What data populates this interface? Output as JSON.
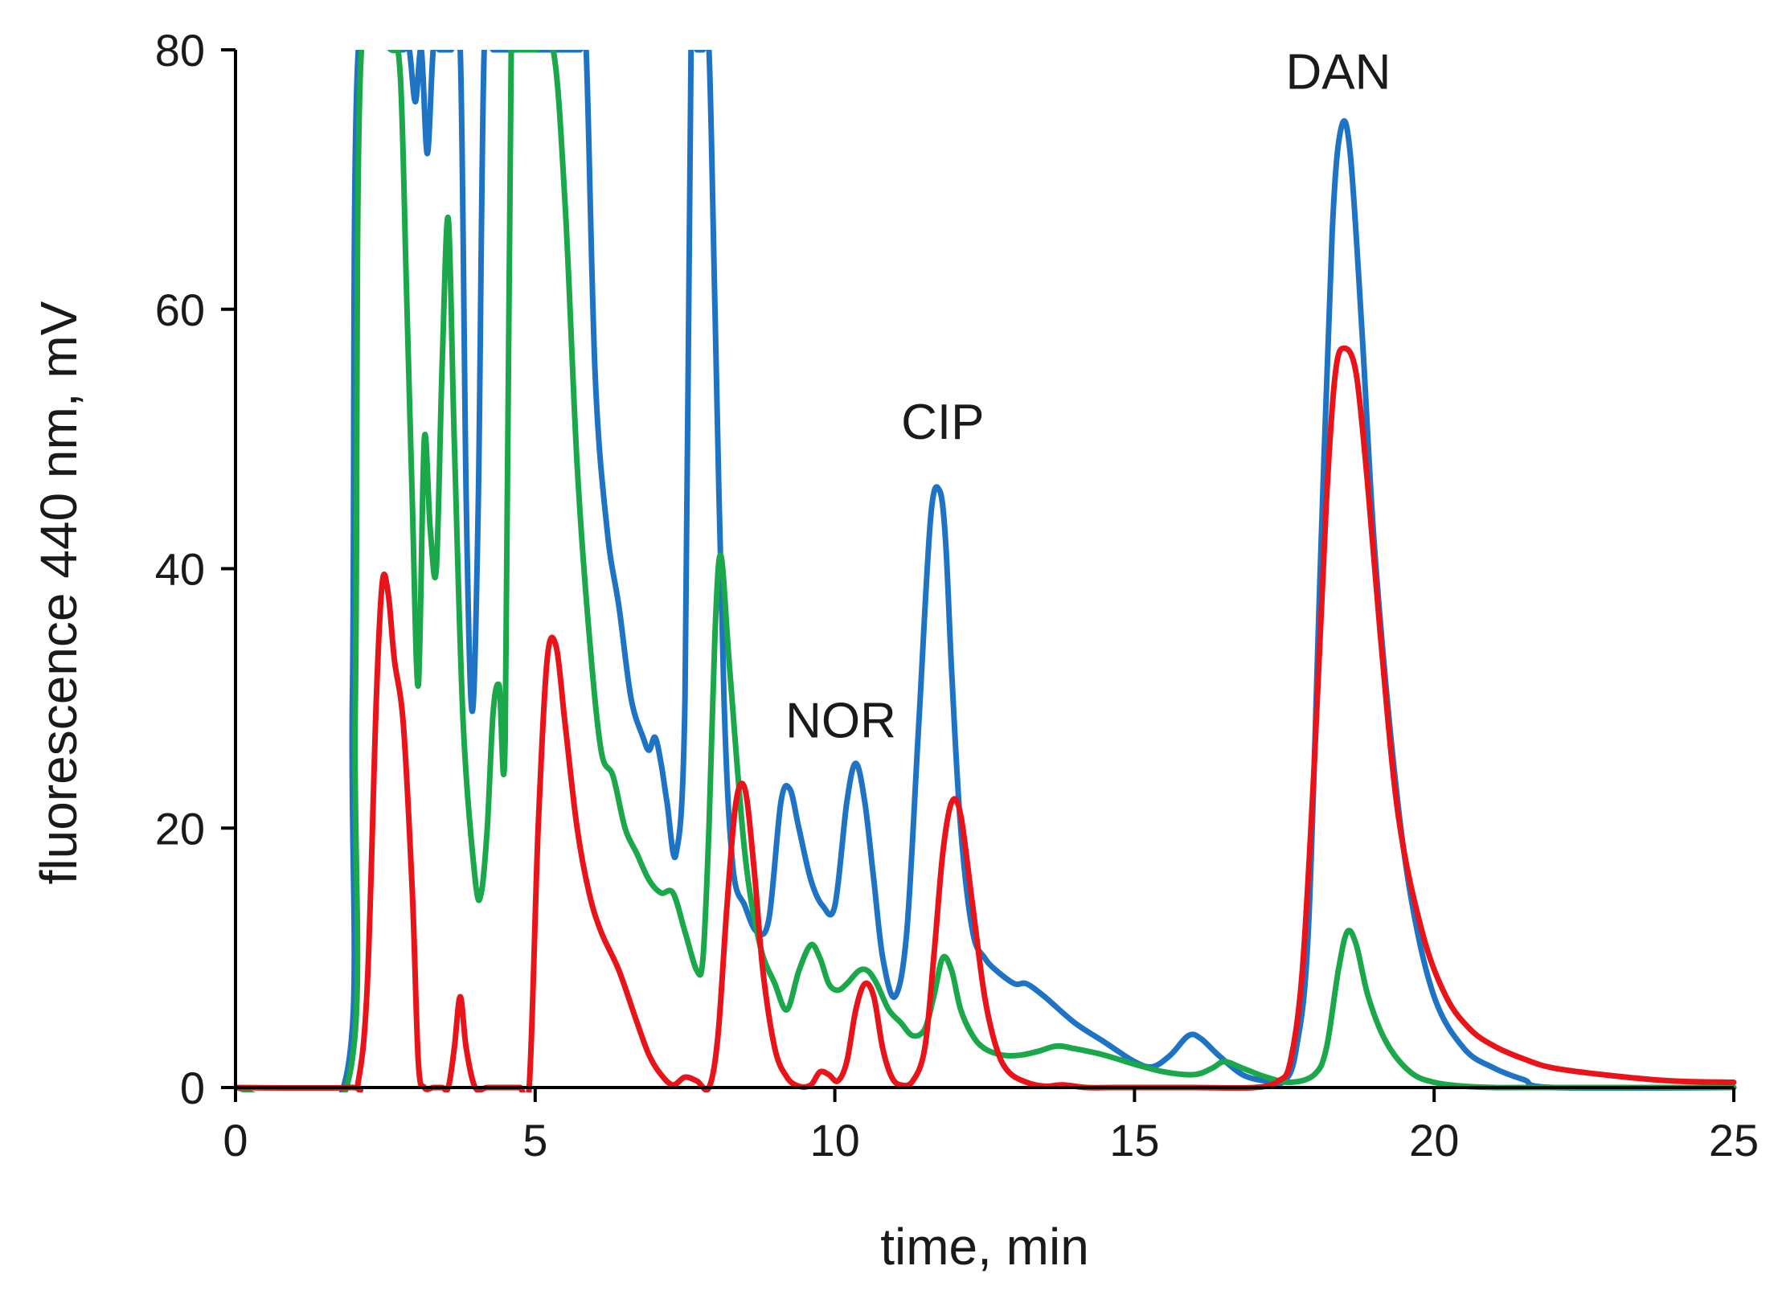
{
  "chart_data": {
    "type": "line",
    "title": "",
    "xlabel": "time, min",
    "ylabel": "fluorescence 440 nm, mV",
    "xlim": [
      0,
      25
    ],
    "ylim": [
      0,
      80
    ],
    "xticks": [
      0,
      5,
      10,
      15,
      20,
      25
    ],
    "yticks": [
      0,
      20,
      40,
      60,
      80
    ],
    "grid": false,
    "legend": "none",
    "annotations": [
      {
        "text": "NOR",
        "x": 10.1,
        "y": 27
      },
      {
        "text": "CIP",
        "x": 11.8,
        "y": 50
      },
      {
        "text": "DAN",
        "x": 18.4,
        "y": 77
      }
    ],
    "series": [
      {
        "name": "blue",
        "color": "#1f73c4",
        "x": [
          0,
          1.8,
          1.95,
          2.05,
          2.6,
          2.8,
          2.9,
          3.0,
          3.1,
          3.2,
          3.3,
          3.4,
          3.5,
          3.6,
          3.75,
          3.85,
          3.95,
          4.05,
          4.15,
          4.3,
          4.5,
          4.7,
          5.0,
          5.3,
          5.45,
          5.6,
          5.75,
          5.85,
          6.0,
          6.2,
          6.4,
          6.6,
          6.8,
          6.9,
          7.0,
          7.1,
          7.2,
          7.35,
          7.5,
          7.6,
          7.7,
          7.8,
          7.9,
          8.0,
          8.15,
          8.3,
          8.5,
          8.7,
          8.9,
          9.1,
          9.25,
          9.4,
          9.6,
          9.8,
          10.0,
          10.2,
          10.35,
          10.5,
          10.65,
          10.8,
          11.0,
          11.2,
          11.4,
          11.6,
          11.75,
          11.85,
          11.95,
          12.1,
          12.3,
          12.5,
          12.7,
          13.0,
          13.2,
          13.5,
          14.0,
          14.5,
          15.0,
          15.3,
          15.6,
          15.9,
          16.1,
          16.4,
          16.8,
          17.2,
          17.5,
          17.7,
          17.9,
          18.1,
          18.3,
          18.45,
          18.6,
          18.8,
          19.0,
          19.3,
          19.6,
          20.0,
          20.5,
          21.0,
          21.5,
          22.0,
          25.0
        ],
        "y": [
          0,
          0,
          30,
          80,
          80,
          80,
          80,
          76,
          80,
          72,
          80,
          80,
          80,
          80,
          80,
          45,
          29,
          45,
          80,
          80,
          80,
          80,
          80,
          80,
          80,
          80,
          80,
          80,
          55,
          43,
          37,
          30,
          27,
          26,
          27,
          25,
          22,
          18,
          30,
          80,
          80,
          80,
          80,
          60,
          30,
          17,
          14,
          12,
          13,
          22,
          23,
          20,
          16,
          14,
          14,
          22,
          25,
          22,
          16,
          10,
          7,
          12,
          28,
          44,
          46,
          42,
          32,
          20,
          12,
          10,
          9,
          8,
          8,
          7,
          5,
          3.5,
          2,
          1.6,
          2.5,
          4,
          3.8,
          2.5,
          1,
          0.5,
          0.5,
          3,
          12,
          40,
          66,
          74,
          72,
          58,
          42,
          26,
          15,
          7,
          3,
          1.5,
          0.6,
          0,
          0
        ]
      },
      {
        "name": "green",
        "color": "#1aa84a",
        "x": [
          0,
          1.85,
          2.0,
          2.1,
          2.6,
          2.75,
          2.85,
          2.95,
          3.05,
          3.15,
          3.25,
          3.35,
          3.45,
          3.55,
          3.65,
          3.8,
          4.0,
          4.1,
          4.2,
          4.3,
          4.4,
          4.5,
          4.6,
          4.7,
          5.0,
          5.3,
          5.5,
          5.7,
          5.9,
          6.1,
          6.3,
          6.5,
          6.7,
          6.9,
          7.1,
          7.3,
          7.5,
          7.7,
          7.8,
          7.9,
          8.0,
          8.1,
          8.25,
          8.5,
          8.75,
          9.0,
          9.2,
          9.4,
          9.6,
          9.75,
          9.9,
          10.05,
          10.2,
          10.4,
          10.55,
          10.7,
          10.9,
          11.1,
          11.3,
          11.5,
          11.65,
          11.8,
          11.95,
          12.1,
          12.3,
          12.5,
          12.8,
          13.1,
          13.4,
          13.7,
          14.0,
          14.5,
          15.0,
          15.5,
          16.0,
          16.3,
          16.5,
          16.8,
          17.2,
          17.6,
          18.0,
          18.2,
          18.4,
          18.55,
          18.7,
          18.9,
          19.2,
          19.6,
          20.0,
          20.5,
          21.0,
          21.5,
          25.0
        ],
        "y": [
          0,
          0,
          30,
          80,
          80,
          78,
          62,
          45,
          31,
          50,
          43,
          40,
          56,
          67,
          50,
          28,
          16,
          15,
          20,
          29,
          31,
          27,
          80,
          80,
          80,
          80,
          68,
          48,
          35,
          26,
          24,
          20,
          18,
          16,
          15,
          15,
          12,
          9,
          10,
          20,
          35,
          41,
          32,
          18,
          11,
          8,
          6,
          9,
          11,
          10,
          8,
          7.5,
          8,
          9,
          9,
          8,
          6,
          5,
          4,
          4.5,
          7,
          10,
          9,
          6,
          4,
          3,
          2.5,
          2.5,
          2.8,
          3.2,
          3,
          2.5,
          1.8,
          1.2,
          1,
          1.5,
          2,
          1.5,
          0.8,
          0.4,
          1,
          3,
          9,
          12,
          11,
          7,
          3.5,
          1.2,
          0.4,
          0.1,
          0,
          0,
          0
        ]
      },
      {
        "name": "red",
        "color": "#e8141a",
        "x": [
          0,
          1.9,
          2.05,
          2.2,
          2.35,
          2.45,
          2.55,
          2.65,
          2.8,
          2.95,
          3.05,
          3.15,
          3.3,
          3.45,
          3.55,
          3.65,
          3.75,
          3.85,
          4.0,
          4.2,
          4.5,
          4.75,
          4.9,
          5.05,
          5.2,
          5.35,
          5.5,
          5.7,
          5.9,
          6.1,
          6.4,
          6.7,
          6.9,
          7.1,
          7.3,
          7.5,
          7.7,
          7.9,
          8.05,
          8.2,
          8.35,
          8.5,
          8.65,
          8.8,
          9.0,
          9.2,
          9.4,
          9.6,
          9.75,
          9.9,
          10.05,
          10.2,
          10.35,
          10.5,
          10.65,
          10.8,
          10.95,
          11.1,
          11.3,
          11.5,
          11.65,
          11.8,
          11.95,
          12.1,
          12.3,
          12.5,
          12.7,
          12.9,
          13.2,
          13.5,
          13.8,
          14.2,
          14.6,
          15.0,
          16.0,
          17.0,
          17.4,
          17.6,
          17.8,
          18.0,
          18.2,
          18.35,
          18.5,
          18.7,
          18.9,
          19.1,
          19.4,
          19.8,
          20.2,
          20.6,
          21.0,
          21.5,
          22.0,
          23.0,
          24.0,
          25.0
        ],
        "y": [
          0,
          0,
          0.5,
          8,
          30,
          39,
          38,
          33,
          28,
          15,
          2,
          0,
          0,
          0,
          0,
          3,
          7,
          3,
          0,
          0,
          0,
          0,
          0,
          20,
          33,
          34,
          28,
          20,
          15,
          12,
          9,
          5,
          2.5,
          1,
          0.2,
          0.8,
          0.5,
          0,
          4,
          14,
          22,
          23,
          17,
          9,
          3,
          0.8,
          0.1,
          0.2,
          1.2,
          1,
          0.5,
          2,
          6,
          8,
          7,
          3,
          0.8,
          0.2,
          0.5,
          3,
          10,
          18,
          22,
          21,
          14,
          7,
          3,
          1.2,
          0.4,
          0.1,
          0.2,
          0,
          0,
          0,
          0,
          0,
          0.5,
          2,
          9,
          25,
          45,
          55,
          57,
          55,
          46,
          35,
          21,
          12,
          7,
          4.5,
          3.2,
          2.2,
          1.5,
          0.9,
          0.5,
          0.4
        ]
      }
    ]
  }
}
